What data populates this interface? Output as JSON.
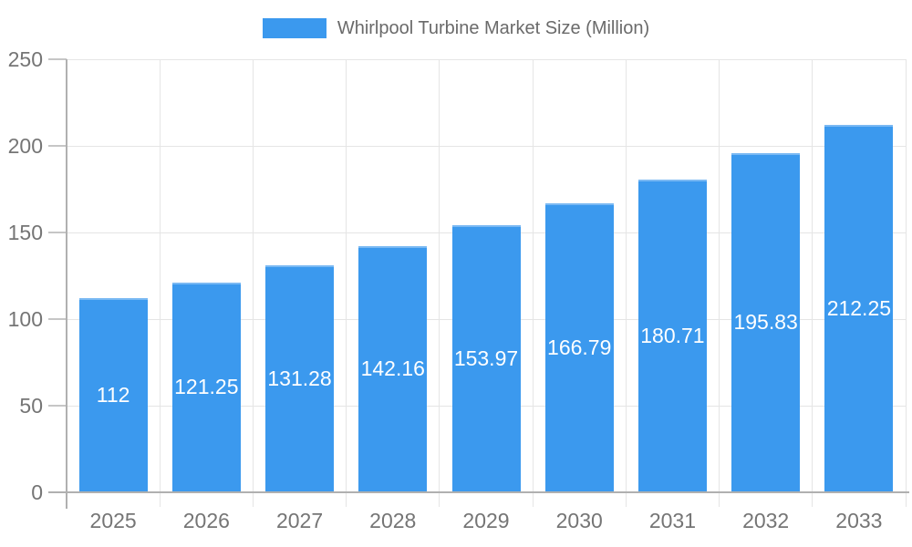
{
  "chart_data": {
    "type": "bar",
    "title": "Whirlpool Turbine Market Size (Million)",
    "series_name": "Whirlpool Turbine Market Size (Million)",
    "categories": [
      "2025",
      "2026",
      "2027",
      "2028",
      "2029",
      "2030",
      "2031",
      "2032",
      "2033"
    ],
    "values": [
      112,
      121.25,
      131.28,
      142.16,
      153.97,
      166.79,
      180.71,
      195.83,
      212.25
    ],
    "xlabel": "",
    "ylabel": "",
    "ylim": [
      0,
      250
    ],
    "yticks": [
      0,
      50,
      100,
      150,
      200,
      250
    ],
    "grid": true,
    "legend_position": "top",
    "bar_color": "#3b99ee",
    "bar_label_color": "#ffffff"
  },
  "colors": {
    "background": "#ffffff",
    "axis_line": "#b0b0b0",
    "gridline": "#e5e5e5",
    "tick_label": "#757575",
    "legend_label": "#6a6a6a"
  }
}
